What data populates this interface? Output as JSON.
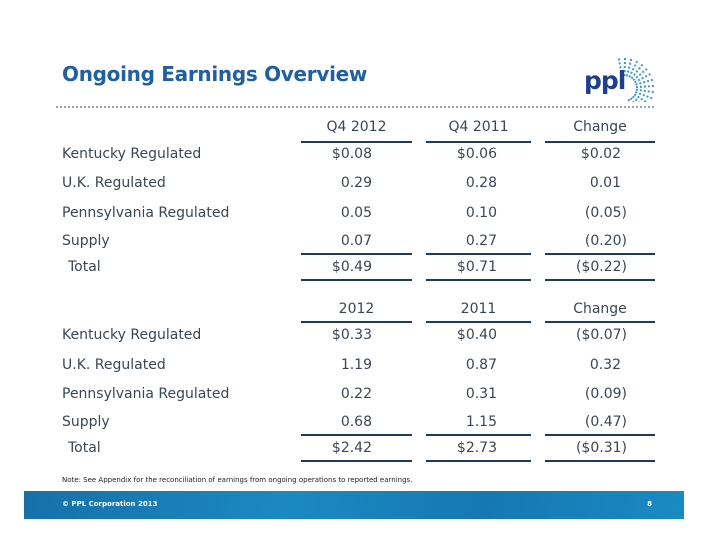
{
  "title": "Ongoing Earnings Overview",
  "logo": "ppl",
  "quarterly": {
    "headers": [
      "Q4 2012",
      "Q4 2011",
      "Change"
    ],
    "rows": [
      {
        "label": "Kentucky Regulated",
        "v": [
          "$0.08",
          "$0.06",
          "$0.02"
        ]
      },
      {
        "label": "U.K. Regulated",
        "v": [
          "0.29",
          "0.28",
          "0.01"
        ]
      },
      {
        "label": "Pennsylvania Regulated",
        "v": [
          "0.05",
          "0.10",
          "(0.05)"
        ]
      },
      {
        "label": "Supply",
        "v": [
          "0.07",
          "0.27",
          "(0.20)"
        ]
      },
      {
        "label": "Total",
        "v": [
          "$0.49",
          "$0.71",
          "($0.22)"
        ]
      }
    ]
  },
  "annual": {
    "headers": [
      "2012",
      "2011",
      "Change"
    ],
    "rows": [
      {
        "label": "Kentucky Regulated",
        "v": [
          "$0.33",
          "$0.40",
          "($0.07)"
        ]
      },
      {
        "label": "U.K. Regulated",
        "v": [
          "1.19",
          "0.87",
          "0.32"
        ]
      },
      {
        "label": "Pennsylvania Regulated",
        "v": [
          "0.22",
          "0.31",
          "(0.09)"
        ]
      },
      {
        "label": "Supply",
        "v": [
          "0.68",
          "1.15",
          "(0.47)"
        ]
      },
      {
        "label": "Total",
        "v": [
          "$2.42",
          "$2.73",
          "($0.31)"
        ]
      }
    ]
  },
  "note": "Note:  See Appendix for the reconciliation of earnings from ongoing operations to reported earnings.",
  "footer": {
    "copyright": "© PPL Corporation 2013",
    "page": "8"
  }
}
